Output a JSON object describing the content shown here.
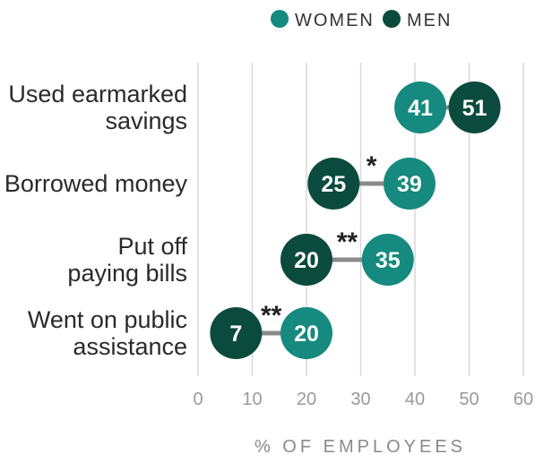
{
  "chart_data": {
    "type": "dumbbell",
    "title": "",
    "xlabel": "% OF EMPLOYEES",
    "ylabel": "",
    "xlim": [
      0,
      60
    ],
    "xticks": [
      0,
      10,
      20,
      30,
      40,
      50,
      60
    ],
    "grid": true,
    "legend_position": "top-center",
    "categories": [
      "Used earmarked savings",
      "Borrowed money",
      "Put off paying bills",
      "Went on public assistance"
    ],
    "category_label_lines": [
      [
        "Used earmarked",
        "savings"
      ],
      [
        "Borrowed money"
      ],
      [
        "Put off",
        "paying bills"
      ],
      [
        "Went on public",
        "assistance"
      ]
    ],
    "series": [
      {
        "name": "WOMEN",
        "values": [
          41,
          39,
          35,
          20
        ],
        "color": "#168a7e"
      },
      {
        "name": "MEN",
        "values": [
          51,
          25,
          20,
          7
        ],
        "color": "#0b4b3e"
      }
    ],
    "significance_markers": [
      "",
      "*",
      "**",
      "**"
    ],
    "connector_color": "#8a8a8a",
    "gridline_color": "#d9d9d9"
  }
}
